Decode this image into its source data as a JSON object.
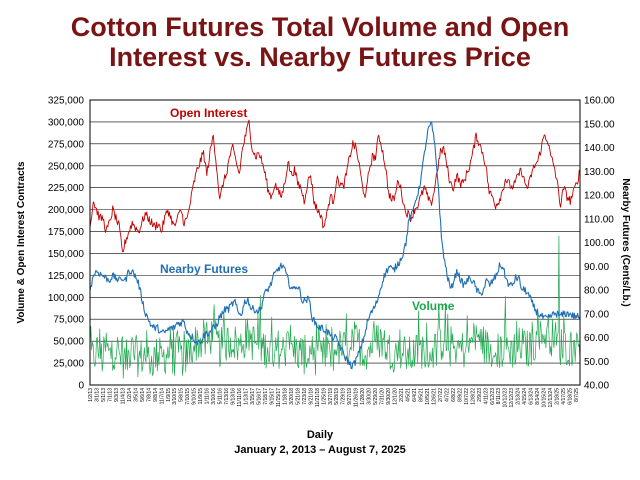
{
  "title_line1": "Cotton Futures Total Volume and Open",
  "title_line2": "Interest vs. Nearby Futures Price",
  "chart_data": {
    "type": "line",
    "xlabel": "Daily",
    "date_range": "January 2, 2013 – August 7, 2025",
    "ylabel_left": "Volume & Open Interest Contracts",
    "ylabel_right": "Nearby Futures (Cents/Lb.)",
    "ylim_left": [
      0,
      325000
    ],
    "ylim_right": [
      40,
      160
    ],
    "yticks_left": [
      "0",
      "25,000",
      "50,000",
      "75,000",
      "100,000",
      "125,000",
      "150,000",
      "175,000",
      "200,000",
      "225,000",
      "250,000",
      "275,000",
      "300,000",
      "325,000"
    ],
    "yticks_right": [
      "40.00",
      "50.00",
      "60.00",
      "70.00",
      "80.00",
      "90.00",
      "100.00",
      "110.00",
      "120.00",
      "130.00",
      "140.00",
      "150.00",
      "160.00"
    ],
    "xticks": [
      "1/2/13",
      "3/1/13",
      "5/1/13",
      "7/1/13",
      "9/3/13",
      "11/4/13",
      "1/2/14",
      "3/5/14",
      "5/6/14",
      "7/8/14",
      "9/8/14",
      "11/7/14",
      "1/9/15",
      "3/10/15",
      "5/8/15",
      "7/10/15",
      "9/10/15",
      "11/9/15",
      "1/11/16",
      "3/10/16",
      "5/11/16",
      "7/13/16",
      "9/13/16",
      "11/11/16",
      "1/13/17",
      "3/15/17",
      "5/16/17",
      "7/18/17",
      "9/15/17",
      "11/15/17",
      "1/18/18",
      "3/20/18",
      "5/21/18",
      "7/23/18",
      "9/21/18",
      "11/21/18",
      "1/25/19",
      "3/27/19",
      "5/28/19",
      "7/29/19",
      "9/27/19",
      "11/26/19",
      "1/28/20",
      "3/30/20",
      "5/29/20",
      "7/31/20",
      "9/30/20",
      "12/1/20",
      "2/2/21",
      "4/5/21",
      "6/4/21",
      "8/5/21",
      "10/5/21",
      "12/6/21",
      "2/7/22",
      "4/7/22",
      "6/8/22",
      "8/9/22",
      "10/7/22",
      "12/8/22",
      "2/9/23",
      "4/11/23",
      "6/12/23",
      "8/11/23",
      "10/12/23",
      "12/12/23",
      "2/13/24",
      "4/15/24",
      "6/13/24",
      "8/14/24",
      "10/15/24",
      "12/13/24",
      "2/18/25",
      "4/17/25",
      "6/18/25",
      "8/7/25"
    ],
    "series": [
      {
        "name": "Open Interest",
        "axis": "left",
        "color": "#c00000",
        "monthly_values": [
          180000,
          210000,
          200000,
          190000,
          190000,
          175000,
          185000,
          200000,
          190000,
          180000,
          150000,
          165000,
          175000,
          185000,
          180000,
          175000,
          185000,
          195000,
          190000,
          185000,
          180000,
          185000,
          175000,
          190000,
          200000,
          190000,
          180000,
          190000,
          200000,
          185000,
          190000,
          210000,
          230000,
          245000,
          255000,
          265000,
          240000,
          265000,
          285000,
          250000,
          210000,
          230000,
          240000,
          260000,
          270000,
          255000,
          240000,
          270000,
          285000,
          300000,
          270000,
          260000,
          265000,
          255000,
          240000,
          220000,
          215000,
          230000,
          220000,
          215000,
          230000,
          255000,
          240000,
          245000,
          230000,
          225000,
          210000,
          230000,
          240000,
          210000,
          200000,
          195000,
          180000,
          195000,
          215000,
          210000,
          235000,
          230000,
          225000,
          240000,
          260000,
          275000,
          270000,
          250000,
          225000,
          215000,
          245000,
          260000,
          260000,
          285000,
          270000,
          250000,
          220000,
          210000,
          215000,
          235000,
          220000,
          200000,
          195000,
          190000,
          200000,
          205000,
          215000,
          225000,
          215000,
          205000,
          220000,
          245000,
          265000,
          270000,
          250000,
          230000,
          225000,
          240000,
          230000,
          230000,
          240000,
          250000,
          265000,
          285000,
          275000,
          265000,
          250000,
          220000,
          215000,
          205000,
          210000,
          220000,
          235000,
          230000,
          225000,
          230000,
          240000,
          245000,
          230000,
          225000,
          240000,
          250000,
          255000,
          270000,
          285000,
          280000,
          260000,
          250000,
          230000,
          205000,
          225000,
          215000,
          210000,
          220000,
          230000,
          245000
        ]
      },
      {
        "name": "Nearby Futures",
        "axis": "right",
        "color": "#1f6fb5",
        "monthly_values": [
          80,
          86,
          88,
          87,
          86,
          85,
          84,
          86,
          85,
          84,
          85,
          84,
          88,
          88,
          86,
          83,
          77,
          71,
          68,
          65,
          64,
          64,
          62,
          62,
          63,
          64,
          64,
          66,
          66,
          67,
          63,
          61,
          60,
          58,
          58,
          60,
          62,
          62,
          64,
          64,
          68,
          70,
          72,
          72,
          74,
          75,
          70,
          70,
          75,
          76,
          72,
          72,
          71,
          72,
          78,
          80,
          82,
          86,
          88,
          90,
          90,
          86,
          82,
          80,
          82,
          80,
          75,
          76,
          76,
          68,
          66,
          64,
          64,
          63,
          62,
          60,
          60,
          58,
          55,
          52,
          50,
          48,
          49,
          52,
          56,
          60,
          66,
          70,
          72,
          75,
          80,
          85,
          88,
          90,
          88,
          90,
          92,
          95,
          100,
          110,
          112,
          118,
          122,
          130,
          140,
          148,
          150,
          140,
          125,
          102,
          92,
          85,
          80,
          85,
          88,
          84,
          82,
          84,
          85,
          83,
          80,
          78,
          80,
          84,
          82,
          84,
          86,
          90,
          90,
          85,
          82,
          82,
          85,
          85,
          80,
          80,
          78,
          75,
          72,
          70,
          69,
          68,
          68,
          69,
          70,
          70,
          69,
          70,
          70,
          70,
          69,
          69,
          68
        ]
      },
      {
        "name": "Volume",
        "axis": "left",
        "color": "#1fa84f",
        "monthly_values": [
          35000,
          30000,
          40000,
          35000,
          30000,
          45000,
          32000,
          38000,
          42000,
          35000,
          30000,
          28000,
          34000,
          38000,
          36000,
          30000,
          32000,
          35000,
          30000,
          28000,
          32000,
          35000,
          30000,
          33000,
          38000,
          36000,
          32000,
          40000,
          35000,
          30000,
          34000,
          42000,
          45000,
          50000,
          48000,
          52000,
          46000,
          55000,
          58000,
          50000,
          42000,
          45000,
          48000,
          50000,
          52000,
          46000,
          44000,
          48000,
          55000,
          58000,
          50000,
          48000,
          46000,
          44000,
          42000,
          40000,
          38000,
          40000,
          42000,
          38000,
          40000,
          44000,
          42000,
          40000,
          38000,
          36000,
          34000,
          36000,
          40000,
          35000,
          32000,
          30000,
          33000,
          36000,
          38000,
          36000,
          40000,
          42000,
          40000,
          44000,
          48000,
          52000,
          50000,
          46000,
          40000,
          38000,
          42000,
          46000,
          48000,
          52000,
          50000,
          46000,
          40000,
          38000,
          36000,
          40000,
          38000,
          35000,
          34000,
          33000,
          36000,
          38000,
          40000,
          42000,
          38000,
          36000,
          40000,
          44000,
          48000,
          50000,
          46000,
          42000,
          40000,
          44000,
          42000,
          40000,
          42000,
          46000,
          50000,
          55000,
          52000,
          48000,
          44000,
          40000,
          38000,
          36000,
          38000,
          40000,
          44000,
          42000,
          40000,
          42000,
          44000,
          46000,
          42000,
          40000,
          44000,
          48000,
          50000,
          54000,
          58000,
          62000,
          56000,
          52000,
          48000,
          44000,
          46000,
          44000,
          42000,
          44000,
          46000,
          50000
        ]
      }
    ],
    "annotations": [
      {
        "text": "Open Interest",
        "color": "#c00000"
      },
      {
        "text": "Nearby Futures",
        "color": "#1f6fb5"
      },
      {
        "text": "Volume",
        "color": "#1fa84f"
      }
    ],
    "volume_peak": 170000,
    "grid": "horizontal"
  }
}
